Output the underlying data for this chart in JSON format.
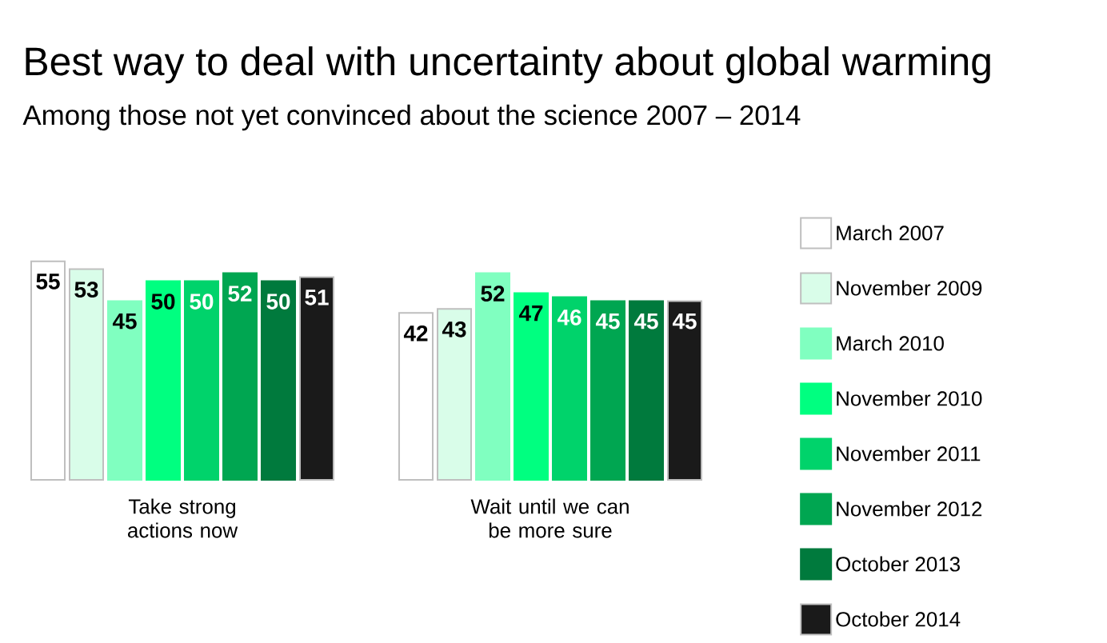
{
  "chart_data": {
    "type": "bar",
    "title": "Best way to deal with uncertainty about global warming",
    "subtitle": "Among those not yet convinced about the science    2007 – 2014",
    "categories": [
      "Take strong actions now",
      "Wait until we can be more sure"
    ],
    "series": [
      {
        "name": "March 2007",
        "color": "#ffffff",
        "values": [
          55,
          42
        ]
      },
      {
        "name": "November 2009",
        "color": "#d9fde9",
        "values": [
          53,
          43
        ]
      },
      {
        "name": "March 2010",
        "color": "#80ffc0",
        "values": [
          45,
          52
        ]
      },
      {
        "name": "November 2010",
        "color": "#00ff80",
        "values": [
          50,
          47
        ]
      },
      {
        "name": "November 2011",
        "color": "#00d36b",
        "values": [
          50,
          46
        ]
      },
      {
        "name": "November 2012",
        "color": "#00a651",
        "values": [
          52,
          45
        ]
      },
      {
        "name": "October 2013",
        "color": "#007a3d",
        "values": [
          50,
          45
        ]
      },
      {
        "name": "October 2014",
        "color": "#1a1a1a",
        "values": [
          51,
          45
        ]
      }
    ],
    "data_labels": true,
    "legend": "right"
  }
}
